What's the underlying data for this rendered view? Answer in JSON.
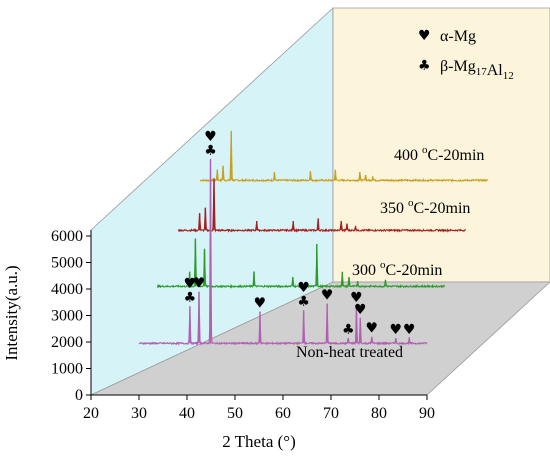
{
  "chart_data": {
    "type": "line",
    "xlabel": "2 Theta (°)",
    "ylabel": "Intensity(a.u.)",
    "x_ticks": [
      "20",
      "30",
      "40",
      "50",
      "60",
      "70",
      "80",
      "90"
    ],
    "y_ticks": [
      "0",
      "1000",
      "2000",
      "3000",
      "4000",
      "5000",
      "6000"
    ],
    "xlim": [
      20,
      90
    ],
    "ylim": [
      0,
      6500
    ],
    "legend": {
      "position": "top-right",
      "entries": [
        {
          "symbol": "♥",
          "label": "α-Mg",
          "label_html_sub": ""
        },
        {
          "symbol": "♣",
          "label": "β-Mg17Al12"
        }
      ]
    },
    "series": [
      {
        "name": "Non-heat treated",
        "color": "#b060b0",
        "baseline": 1950,
        "peaks": [
          {
            "x": 40.6,
            "y": 3350
          },
          {
            "x": 42.5,
            "y": 3900
          },
          {
            "x": 44.9,
            "y": 8900
          },
          {
            "x": 55.2,
            "y": 3150
          },
          {
            "x": 64.3,
            "y": 3200
          },
          {
            "x": 69.2,
            "y": 3450
          },
          {
            "x": 73.6,
            "y": 2150
          },
          {
            "x": 75.3,
            "y": 3350
          },
          {
            "x": 76.1,
            "y": 2900
          },
          {
            "x": 78.5,
            "y": 2200
          },
          {
            "x": 83.5,
            "y": 2150
          },
          {
            "x": 86.3,
            "y": 2150
          }
        ],
        "markers": [
          {
            "x": 40.6,
            "symbols": "♥♣"
          },
          {
            "x": 42.5,
            "symbols": "♥"
          },
          {
            "x": 44.9,
            "symbols": "♥♣"
          },
          {
            "x": 55.2,
            "symbols": "♥"
          },
          {
            "x": 64.3,
            "symbols": "♥♣"
          },
          {
            "x": 69.2,
            "symbols": "♥"
          },
          {
            "x": 73.6,
            "symbols": "♣"
          },
          {
            "x": 75.3,
            "symbols": "♥"
          },
          {
            "x": 76.1,
            "symbols": "♥"
          },
          {
            "x": 78.5,
            "symbols": "♥"
          },
          {
            "x": 83.5,
            "symbols": "♥"
          },
          {
            "x": 86.3,
            "symbols": "♥"
          }
        ]
      },
      {
        "name": "300 oC-20min",
        "label_prefix": "300 ",
        "label_sup": "o",
        "label_suffix": "C-20min",
        "color": "#2e9a2e",
        "baseline": 1950,
        "peaks": [
          {
            "x": 36.8,
            "y": 2500
          },
          {
            "x": 38.0,
            "y": 3750
          },
          {
            "x": 39.9,
            "y": 3350
          },
          {
            "x": 50.2,
            "y": 2500
          },
          {
            "x": 58.3,
            "y": 2300
          },
          {
            "x": 63.3,
            "y": 3550
          },
          {
            "x": 68.6,
            "y": 2500
          },
          {
            "x": 70.0,
            "y": 2300
          },
          {
            "x": 71.8,
            "y": 2150
          },
          {
            "x": 77.6,
            "y": 2200
          }
        ]
      },
      {
        "name": "350 oC-20min",
        "label_prefix": "350 ",
        "label_sup": "o",
        "label_suffix": "C-20min",
        "color": "#a32020",
        "baseline": 1950,
        "peaks": [
          {
            "x": 34.5,
            "y": 2600
          },
          {
            "x": 35.7,
            "y": 2800
          },
          {
            "x": 37.5,
            "y": 3900
          },
          {
            "x": 46.4,
            "y": 2300
          },
          {
            "x": 54.0,
            "y": 2300
          },
          {
            "x": 59.2,
            "y": 2400
          },
          {
            "x": 64.0,
            "y": 2300
          },
          {
            "x": 65.2,
            "y": 2200
          },
          {
            "x": 67.0,
            "y": 2100
          }
        ]
      },
      {
        "name": "400 oC-20min",
        "label_prefix": "400 ",
        "label_sup": "o",
        "label_suffix": "C-20min",
        "color": "#c8a020",
        "baseline": 1950,
        "peaks": [
          {
            "x": 33.6,
            "y": 2350
          },
          {
            "x": 34.8,
            "y": 2500
          },
          {
            "x": 36.5,
            "y": 3800
          },
          {
            "x": 45.5,
            "y": 2250
          },
          {
            "x": 53.0,
            "y": 2300
          },
          {
            "x": 58.2,
            "y": 2350
          },
          {
            "x": 63.3,
            "y": 2250
          },
          {
            "x": 64.5,
            "y": 2150
          },
          {
            "x": 66.0,
            "y": 2100
          }
        ]
      }
    ]
  }
}
